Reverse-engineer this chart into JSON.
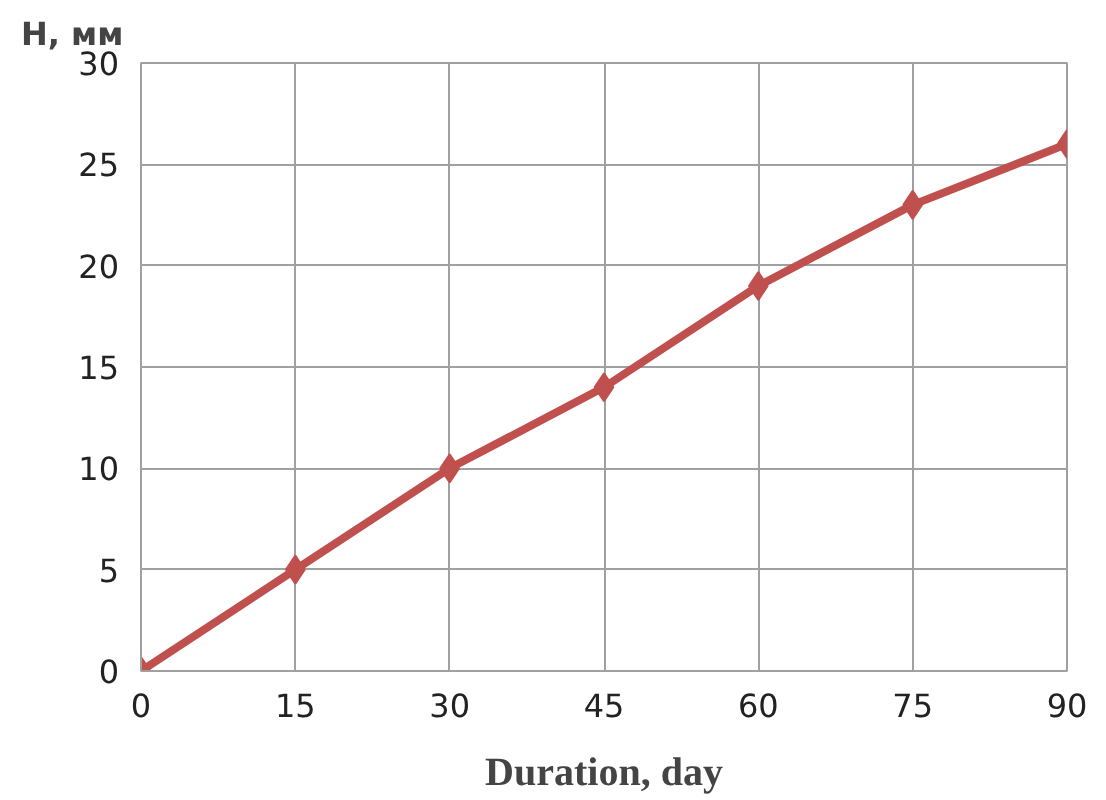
{
  "chart_data": {
    "type": "line",
    "ylabel": "H, мм",
    "xlabel": "Duration, day",
    "x": [
      0,
      15,
      30,
      45,
      60,
      75,
      90
    ],
    "series": [
      {
        "color": "#c0504d",
        "values": [
          0,
          5,
          10,
          14,
          19,
          23,
          26
        ]
      }
    ],
    "xlim": [
      0,
      90
    ],
    "xticks": [
      0,
      15,
      30,
      45,
      60,
      75,
      90
    ],
    "ylim": [
      0,
      30
    ],
    "yticks": [
      0,
      5,
      10,
      15,
      20,
      25,
      30
    ],
    "grid": true,
    "marker": "diamond",
    "line_style": "solid"
  }
}
